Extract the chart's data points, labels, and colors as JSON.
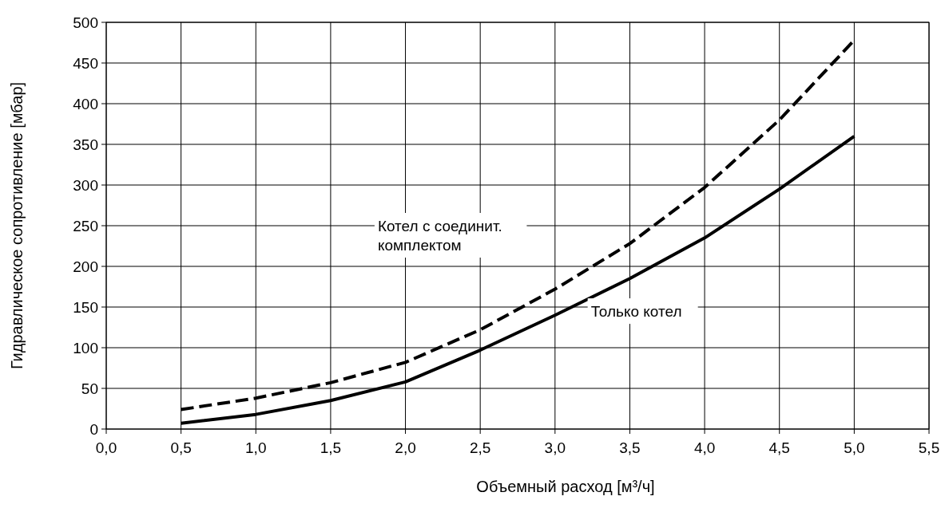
{
  "chart_data": {
    "type": "line",
    "xlabel": "Объемный расход [м³/ч]",
    "ylabel": "Гидравлическое сопротивление [мбар]",
    "x": [
      0.5,
      1.0,
      1.5,
      2.0,
      2.5,
      3.0,
      3.5,
      4.0,
      4.5,
      5.0
    ],
    "series": [
      {
        "color": "#000000",
        "line_style": "solid",
        "values": [
          7,
          18,
          35,
          58,
          97,
          140,
          185,
          235,
          295,
          360
        ]
      },
      {
        "color": "#000000",
        "line_style": "dashed",
        "values": [
          24,
          38,
          57,
          82,
          122,
          172,
          228,
          297,
          380,
          478
        ]
      }
    ],
    "xlim": [
      0,
      5.5
    ],
    "xticks": [
      {
        "value": 0,
        "label": "0,0"
      },
      {
        "value": 0.5,
        "label": "0,5"
      },
      {
        "value": 1,
        "label": "1,0"
      },
      {
        "value": 1.5,
        "label": "1,5"
      },
      {
        "value": 2,
        "label": "2,0"
      },
      {
        "value": 2.5,
        "label": "2,5"
      },
      {
        "value": 3,
        "label": "3,0"
      },
      {
        "value": 3.5,
        "label": "3,5"
      },
      {
        "value": 4,
        "label": "4,0"
      },
      {
        "value": 4.5,
        "label": "4,5"
      },
      {
        "value": 5,
        "label": "5,0"
      },
      {
        "value": 5.5,
        "label": "5,5"
      }
    ],
    "ylim": [
      0,
      500
    ],
    "yticks": [
      0,
      50,
      100,
      150,
      200,
      250,
      300,
      350,
      400,
      450,
      500
    ],
    "grid": true,
    "marker": "none",
    "annotations": [
      "Котел с соединит.\nкомплектом",
      "Только котел"
    ]
  }
}
